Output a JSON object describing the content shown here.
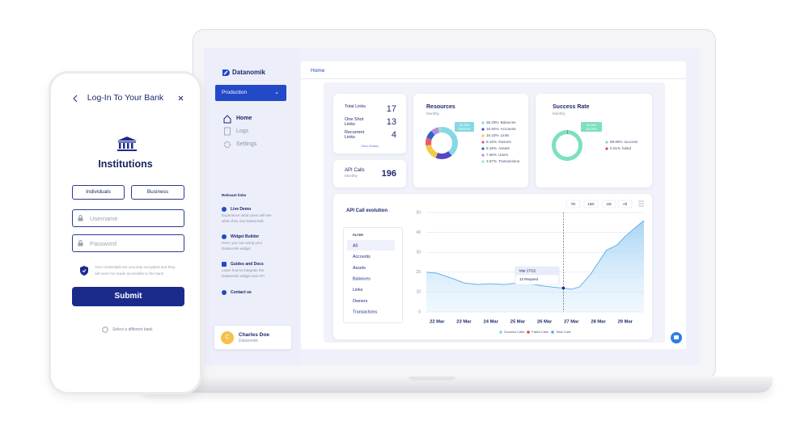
{
  "phone": {
    "title": "Log-In To Your Bank",
    "heading": "Institutions",
    "tabs": [
      "Individuals",
      "Business"
    ],
    "username": "Username",
    "password": "Password",
    "notice": "Your credentials are securely encrypted and they will never be made accessible to the bank",
    "submit": "Submit",
    "change_bank": "Select a different bank"
  },
  "sidebar": {
    "brand": "Datanomik",
    "environment": "Production",
    "nav": [
      "Home",
      "Logs",
      "Settings"
    ],
    "links_title": "Relevant links",
    "links": [
      {
        "title": "Live Demo",
        "text": "Experience what users will see when they use Datanomik"
      },
      {
        "title": "Widget Builder",
        "text": "Here, you can setup your Datanomik widget"
      },
      {
        "title": "Guides and Docs",
        "text": "Learn how to integrate the Datanomik widget and API"
      },
      {
        "title": "Contact us"
      }
    ],
    "user": {
      "initial": "C",
      "name": "Charles Doe",
      "company": "Datanomik"
    }
  },
  "dashboard": {
    "breadcrumb": "Home",
    "links_card": {
      "rows": [
        {
          "label": "Total Links",
          "value": 17
        },
        {
          "label": "One Shot Links",
          "value": 13
        },
        {
          "label": "Recurrent Links",
          "value": 4
        }
      ],
      "action": "View Details"
    },
    "api_card": {
      "label": "API Calls",
      "period": "Monthly",
      "value": 196
    }
  },
  "chart_data": [
    {
      "type": "pie",
      "title": "Resources",
      "subtitle": "Monthly",
      "categories": [
        "Balances",
        "Accounts",
        "Links",
        "Owners",
        "Assets",
        "Users",
        "Transactions"
      ],
      "values": [
        39.29,
        16.84,
        16.33,
        8.16,
        8.16,
        7.65,
        3.57
      ],
      "value_labels": [
        "39.29%",
        "16.84%",
        "16.33%",
        "8.16%",
        "8.16%",
        "7.65%",
        "3.57%"
      ],
      "colors": [
        "#86d8e4",
        "#5548c2",
        "#f2c94c",
        "#e85a6b",
        "#2d64c8",
        "#b18de0",
        "#9be3c4"
      ]
    },
    {
      "type": "pie",
      "title": "Success Rate",
      "subtitle": "Monthly",
      "categories": [
        "success",
        "failed"
      ],
      "values": [
        99.99,
        0.01
      ],
      "value_labels": [
        "99.99%",
        "0.01%"
      ],
      "colors": [
        "#7de0c0",
        "#e04459"
      ]
    },
    {
      "type": "area",
      "title": "API Call evolution",
      "ranges": [
        "7D",
        "15D",
        "1M",
        "All"
      ],
      "filter_title": "FILTER",
      "filters": [
        "All",
        "Accounts",
        "Assets",
        "Balances",
        "Links",
        "Owners",
        "Transactions"
      ],
      "x": [
        21.6,
        22,
        22.6,
        23,
        23.5,
        24,
        24.5,
        25,
        25.5,
        26,
        26.5,
        26.7,
        27,
        27.3,
        27.7,
        28,
        28.3,
        28.7,
        29,
        29.4,
        29.7
      ],
      "series": [
        {
          "name": "Success Calls",
          "color": "#7de0c0"
        },
        {
          "name": "Failed Calls",
          "color": "#e04459"
        },
        {
          "name": "Total Calls",
          "color": "#5aa9e6",
          "values": [
            20,
            19.5,
            16.7,
            14.6,
            13.8,
            14.2,
            13.8,
            14.6,
            14,
            13,
            12.2,
            12,
            11.4,
            12.6,
            18.7,
            24.8,
            31,
            33.7,
            38,
            42.7,
            46
          ]
        }
      ],
      "xlim": [
        21.6,
        29.7
      ],
      "ylim": [
        0,
        50
      ],
      "yticks": [
        0,
        10,
        20,
        30,
        40,
        50
      ],
      "xticks": [
        {
          "value": 22,
          "label": "22 Mar"
        },
        {
          "value": 23,
          "label": "23 Mar"
        },
        {
          "value": 24,
          "label": "24 Mar"
        },
        {
          "value": 25,
          "label": "25 Mar"
        },
        {
          "value": 26,
          "label": "26 Mar"
        },
        {
          "value": 27,
          "label": "27 Mar"
        },
        {
          "value": 28,
          "label": "28 Mar"
        },
        {
          "value": 29,
          "label": "29 Mar"
        }
      ],
      "grid": true,
      "tooltip": {
        "x": 26.7,
        "title": "Mar 27/22",
        "label": "12 Request"
      }
    }
  ]
}
